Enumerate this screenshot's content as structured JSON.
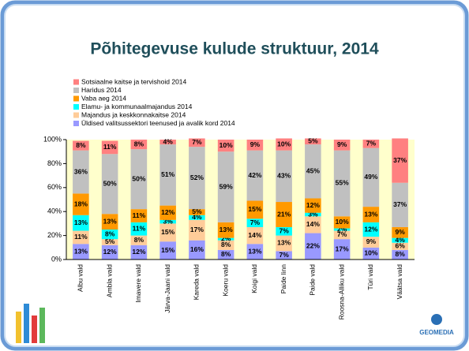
{
  "logo": "GEOMEDIA",
  "chart_data": {
    "type": "stacked_bar",
    "title": "Põhitegevuse kulude struktuur, 2014",
    "categories": [
      "Albu vald",
      "Ambla vald",
      "Imavere vald",
      "Järva-Jaani vald",
      "Kareda vald",
      "Koeru vald",
      "Koigi vald",
      "Paide linn",
      "Paide vald",
      "Roosna-Alliku vald",
      "Türi vald",
      "Väätsa vald"
    ],
    "series": [
      {
        "name": "Üldised valitsussektori teenused ja avalik kord 2014",
        "color": "#9999ff",
        "values": [
          13,
          12,
          12,
          15,
          16,
          8,
          13,
          7,
          22,
          17,
          10,
          8
        ],
        "value_labels": [
          "13%",
          "12%",
          "12%",
          "15%",
          "16%",
          "8%",
          "13%",
          "7%",
          "22%",
          "17%",
          "10%",
          "8%"
        ]
      },
      {
        "name": "Majandus ja keskkonnakaitse 2014",
        "color": "#ffcc99",
        "values": [
          11,
          5,
          8,
          15,
          17,
          8,
          14,
          13,
          14,
          7,
          9,
          6
        ],
        "value_labels": [
          "11%",
          "5%",
          "8%",
          "15%",
          "17%",
          "8%",
          "14%",
          "13%",
          "14%",
          "7%",
          "9%",
          "6%"
        ]
      },
      {
        "name": "Elamu- ja kommunaalmajandus 2014",
        "color": "#00ffff",
        "values": [
          13,
          8,
          11,
          3,
          4,
          2,
          7,
          7,
          3,
          2,
          12,
          4
        ],
        "value_labels": [
          "13%",
          "8%",
          "11%",
          "3%",
          "4%",
          "2%",
          "7%",
          "7%",
          "3%",
          "2%",
          "12%",
          "4%"
        ]
      },
      {
        "name": "Vaba aeg 2014",
        "color": "#ff9900",
        "values": [
          18,
          13,
          11,
          12,
          5,
          13,
          15,
          21,
          12,
          10,
          13,
          9
        ],
        "value_labels": [
          "18%",
          "13%",
          "11%",
          "12%",
          "5%",
          "13%",
          "15%",
          "21%",
          "12%",
          "10%",
          "13%",
          "9%"
        ]
      },
      {
        "name": "Haridus 2014",
        "color": "#c0c0c0",
        "values": [
          36,
          50,
          50,
          51,
          52,
          59,
          42,
          43,
          45,
          55,
          49,
          37
        ],
        "value_labels": [
          "36%",
          "50%",
          "50%",
          "51%",
          "52%",
          "59%",
          "42%",
          "43%",
          "45%",
          "55%",
          "49%",
          "37%"
        ]
      },
      {
        "name": "Sotsiaalne kaitse ja tervishoid 2014",
        "color": "#ff8080",
        "values": [
          8,
          11,
          8,
          4,
          7,
          10,
          9,
          10,
          5,
          9,
          7,
          37
        ],
        "value_labels": [
          "8%",
          "11%",
          "8%",
          "4%",
          "7%",
          "10%",
          "9%",
          "10%",
          "5%",
          "9%",
          "7%",
          "37%"
        ]
      }
    ],
    "ylim": [
      0,
      100
    ],
    "yticks": [
      {
        "value": 0,
        "label": "0%"
      },
      {
        "value": 20,
        "label": "20%"
      },
      {
        "value": 40,
        "label": "40%"
      },
      {
        "value": 60,
        "label": "60%"
      },
      {
        "value": 80,
        "label": "80%"
      },
      {
        "value": 100,
        "label": "100%"
      }
    ],
    "legend": "top-left",
    "grid": false
  }
}
